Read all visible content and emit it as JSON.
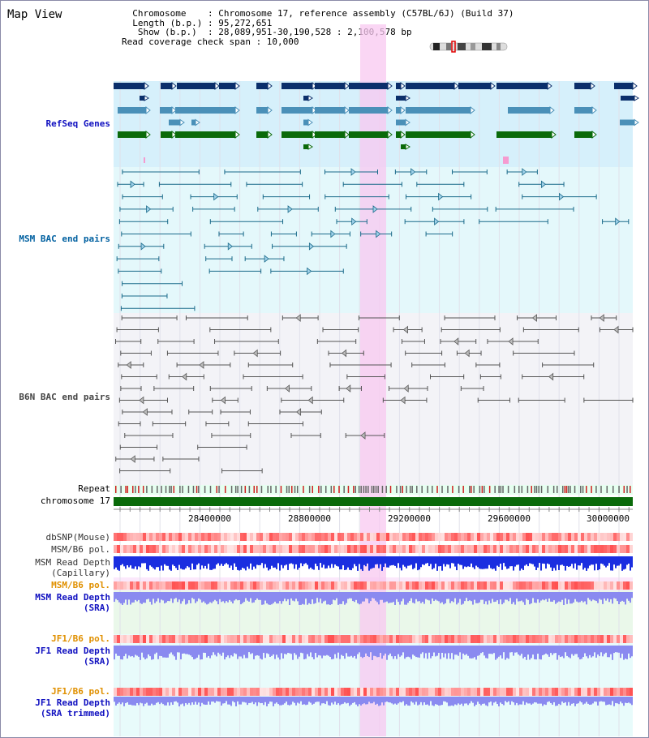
{
  "header": {
    "title": "Map View",
    "info_lines": [
      "  Chromosome    : Chromosome 17, reference assembly (C57BL/6J) (Build 37)",
      "  Length (b.p.) : 95,272,651",
      "   Show (b.p.)  : 28,089,951-30,190,528 : 2,100,578 bp",
      "Read coverage check span : 10,000"
    ]
  },
  "tracks": {
    "refseq": "RefSeq Genes",
    "msm_bac": "MSM BAC end pairs",
    "b6n_bac": "B6N BAC end pairs",
    "repeat": "Repeat",
    "chromosome": "chromosome 17",
    "dbsnp": "dbSNP(Mouse)",
    "msm_b6_pol_1": "MSM/B6 pol.",
    "msm_read_depth_cap_1": "MSM Read Depth",
    "msm_read_depth_cap_2": "(Capillary)",
    "msm_b6_pol_2": "MSM/B6 pol.",
    "msm_read_depth_sra_1": "MSM Read Depth",
    "msm_read_depth_sra_2": "(SRA)",
    "jf1_b6_pol_1": "JF1/B6 pol.",
    "jf1_read_depth_sra_1": "JF1 Read Depth",
    "jf1_read_depth_sra_2": "(SRA)",
    "jf1_b6_pol_2": "JF1/B6 pol.",
    "jf1_read_depth_trim_1": "JF1 Read Depth",
    "jf1_read_depth_trim_2": "(SRA trimmed)"
  },
  "axis": {
    "ticks": [
      "28400000",
      "28800000",
      "29200000",
      "29600000",
      "30000000"
    ]
  },
  "colors": {
    "refseq_dark": "#0b2f6b",
    "refseq_mid": "#4a90b8",
    "refseq_green": "#0a6a0a",
    "msm_line": "#1a6a8a",
    "b6n_line": "#555555",
    "highlight": "#f8c8f0",
    "depth_blue": "#1a2ee0",
    "depth_light": "#8a8af0"
  }
}
